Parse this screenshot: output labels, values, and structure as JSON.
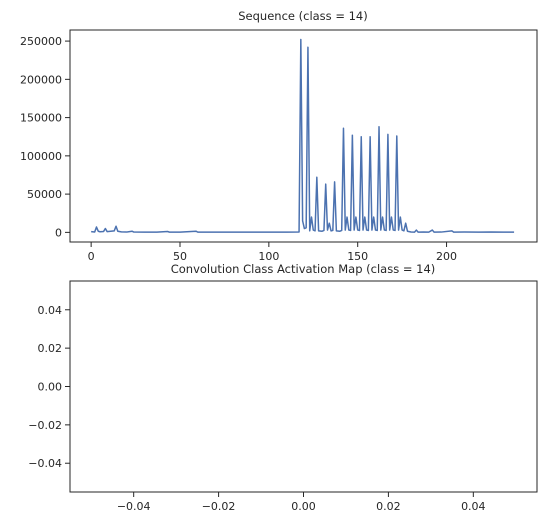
{
  "chart_data": [
    {
      "type": "line",
      "title": "Sequence (class = 14)",
      "xlabel": "",
      "ylabel": "",
      "xlim": [
        -11.9,
        250.9
      ],
      "ylim": [
        -12595,
        264495
      ],
      "x_ticks": [
        0,
        50,
        100,
        150,
        200
      ],
      "x_tick_labels": [
        "0",
        "50",
        "100",
        "150",
        "200"
      ],
      "y_ticks": [
        0,
        50000,
        100000,
        150000,
        200000,
        250000
      ],
      "y_tick_labels": [
        "0",
        "50000",
        "100000",
        "150000",
        "200000",
        "250000"
      ],
      "grid": false,
      "series": [
        {
          "name": "",
          "color": "#4c72b0",
          "points": [
            [
              0,
              1000
            ],
            [
              2,
              500
            ],
            [
              3,
              7000
            ],
            [
              4,
              1500
            ],
            [
              5,
              800
            ],
            [
              7,
              1200
            ],
            [
              8,
              5000
            ],
            [
              9,
              1000
            ],
            [
              11,
              1500
            ],
            [
              13,
              2000
            ],
            [
              14,
              8000
            ],
            [
              15,
              1500
            ],
            [
              17,
              600
            ],
            [
              20,
              400
            ],
            [
              23,
              1500
            ],
            [
              24,
              400
            ],
            [
              30,
              300
            ],
            [
              37,
              300
            ],
            [
              43,
              1200
            ],
            [
              44,
              300
            ],
            [
              50,
              300
            ],
            [
              59,
              1500
            ],
            [
              60,
              300
            ],
            [
              70,
              300
            ],
            [
              80,
              300
            ],
            [
              90,
              300
            ],
            [
              100,
              300
            ],
            [
              110,
              300
            ],
            [
              117,
              500
            ],
            [
              118,
              252000
            ],
            [
              119,
              15000
            ],
            [
              120,
              5000
            ],
            [
              121,
              6000
            ],
            [
              122,
              242000
            ],
            [
              123,
              2000
            ],
            [
              124,
              20000
            ],
            [
              125,
              3000
            ],
            [
              126,
              2000
            ],
            [
              127,
              72000
            ],
            [
              128,
              2000
            ],
            [
              130,
              1500
            ],
            [
              131,
              2500
            ],
            [
              132,
              63000
            ],
            [
              133,
              3000
            ],
            [
              134,
              12000
            ],
            [
              135,
              2000
            ],
            [
              136,
              2500
            ],
            [
              137,
              66000
            ],
            [
              138,
              2000
            ],
            [
              140,
              1500
            ],
            [
              141,
              2500
            ],
            [
              142,
              136000
            ],
            [
              143,
              3000
            ],
            [
              144,
              20000
            ],
            [
              145,
              3000
            ],
            [
              146,
              2500
            ],
            [
              147,
              127000
            ],
            [
              148,
              3000
            ],
            [
              149,
              20000
            ],
            [
              150,
              3000
            ],
            [
              151,
              2500
            ],
            [
              152,
              125000
            ],
            [
              153,
              3000
            ],
            [
              154,
              20000
            ],
            [
              155,
              3000
            ],
            [
              156,
              2500
            ],
            [
              157,
              125000
            ],
            [
              158,
              3000
            ],
            [
              159,
              20000
            ],
            [
              160,
              3000
            ],
            [
              161,
              2500
            ],
            [
              162,
              138000
            ],
            [
              163,
              3000
            ],
            [
              164,
              20000
            ],
            [
              165,
              3000
            ],
            [
              166,
              2500
            ],
            [
              167,
              128000
            ],
            [
              168,
              3000
            ],
            [
              169,
              20000
            ],
            [
              170,
              3000
            ],
            [
              171,
              2500
            ],
            [
              172,
              126000
            ],
            [
              173,
              3000
            ],
            [
              174,
              20000
            ],
            [
              175,
              3000
            ],
            [
              176,
              2000
            ],
            [
              177,
              12000
            ],
            [
              178,
              1500
            ],
            [
              180,
              500
            ],
            [
              182,
              300
            ],
            [
              183,
              3000
            ],
            [
              184,
              300
            ],
            [
              187,
              400
            ],
            [
              190,
              300
            ],
            [
              192,
              3000
            ],
            [
              193,
              300
            ],
            [
              197,
              400
            ],
            [
              203,
              2000
            ],
            [
              204,
              300
            ],
            [
              210,
              400
            ],
            [
              218,
              300
            ],
            [
              225,
              500
            ],
            [
              232,
              300
            ],
            [
              238,
              300
            ]
          ]
        }
      ]
    },
    {
      "type": "line",
      "title": "Convolution Class Activation Map (class = 14)",
      "xlabel": "",
      "ylabel": "",
      "xlim": [
        -0.055,
        0.055
      ],
      "ylim": [
        -0.055,
        0.055
      ],
      "x_ticks": [
        -0.04,
        -0.02,
        0.0,
        0.02,
        0.04
      ],
      "x_tick_labels": [
        "−0.04",
        "−0.02",
        "0.00",
        "0.02",
        "0.04"
      ],
      "y_ticks": [
        0.04,
        0.02,
        0.0,
        -0.02,
        -0.04
      ],
      "y_tick_labels": [
        "0.04",
        "0.02",
        "0.00",
        "−0.02",
        "−0.04"
      ],
      "grid": false,
      "series": []
    }
  ]
}
